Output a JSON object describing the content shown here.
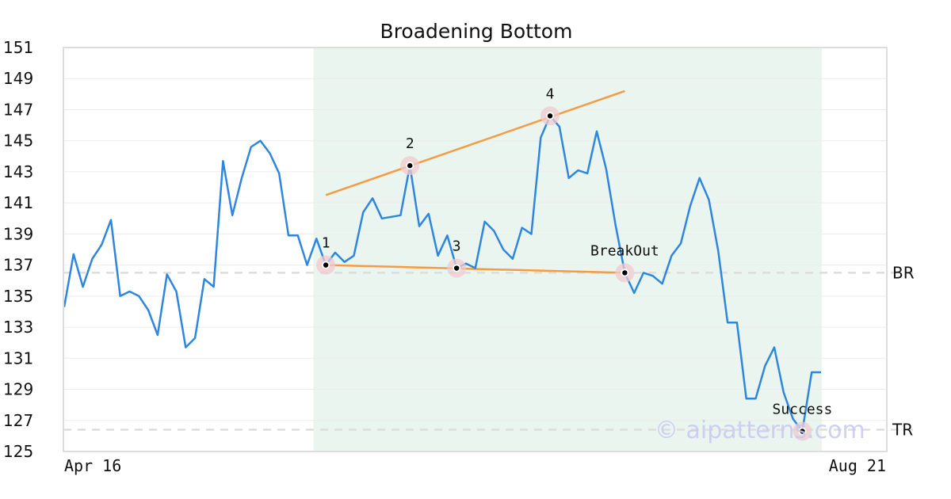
{
  "chart_data": {
    "type": "line",
    "title": "Broadening Bottom",
    "xlabel": "",
    "ylabel": "",
    "ylim": [
      125,
      151
    ],
    "yticks": [
      125,
      127,
      129,
      131,
      133,
      135,
      137,
      139,
      141,
      143,
      145,
      147,
      149,
      151
    ],
    "x_tick_labels": [
      "Apr 16",
      "Aug 21"
    ],
    "grid": "horizontal",
    "colors": {
      "price": "#2e86de",
      "trendline": "#f39c44",
      "pattern_zone": "#eaf5f0",
      "level_line": "#dddddd",
      "marker_halo": "#f2c9cf"
    },
    "series": [
      {
        "values": [
          134.3,
          137.7,
          135.6,
          137.4,
          138.3,
          139.9,
          135.0,
          135.3,
          135.0,
          134.1,
          132.5,
          136.4,
          135.3,
          131.7,
          132.3,
          136.1,
          135.6,
          143.7,
          140.2,
          142.6,
          144.6,
          145.0,
          144.2,
          142.9,
          138.9,
          138.9,
          137.0,
          138.7,
          137.0,
          137.8,
          137.2,
          137.6,
          140.4,
          141.3,
          140.0,
          140.1,
          140.2,
          143.4,
          139.5,
          140.3,
          137.6,
          138.9,
          136.8,
          137.1,
          136.8,
          139.8,
          139.2,
          138.0,
          137.4,
          139.4,
          139.0,
          145.2,
          146.6,
          145.9,
          142.6,
          143.1,
          142.9,
          145.6,
          143.2,
          139.6,
          136.5,
          135.2,
          136.5,
          136.3,
          135.8,
          137.6,
          138.4,
          140.8,
          142.6,
          141.2,
          137.9,
          133.3,
          133.3,
          128.4,
          128.4,
          130.5,
          131.7,
          128.8,
          127.1,
          126.3,
          130.1,
          130.1
        ]
      }
    ],
    "pattern_zone": {
      "start_index": 26,
      "end_index": 81
    },
    "trendlines": [
      {
        "from": [
          28,
          141.5
        ],
        "to": [
          60,
          148.2
        ]
      },
      {
        "from": [
          28,
          137.0
        ],
        "to": [
          60,
          136.5
        ]
      }
    ],
    "points": [
      {
        "label": "1",
        "index": 28,
        "value": 137.0
      },
      {
        "label": "2",
        "index": 37,
        "value": 143.4
      },
      {
        "label": "3",
        "index": 42,
        "value": 136.8
      },
      {
        "label": "4",
        "index": 52,
        "value": 146.6
      },
      {
        "label": "BreakOut",
        "index": 60,
        "value": 136.5
      },
      {
        "label": "Success",
        "index": 79,
        "value": 126.3
      }
    ],
    "levels": [
      {
        "label": "BR",
        "value": 136.5
      },
      {
        "label": "TR",
        "value": 126.4
      }
    ],
    "watermark": "© aipatterns.com"
  }
}
